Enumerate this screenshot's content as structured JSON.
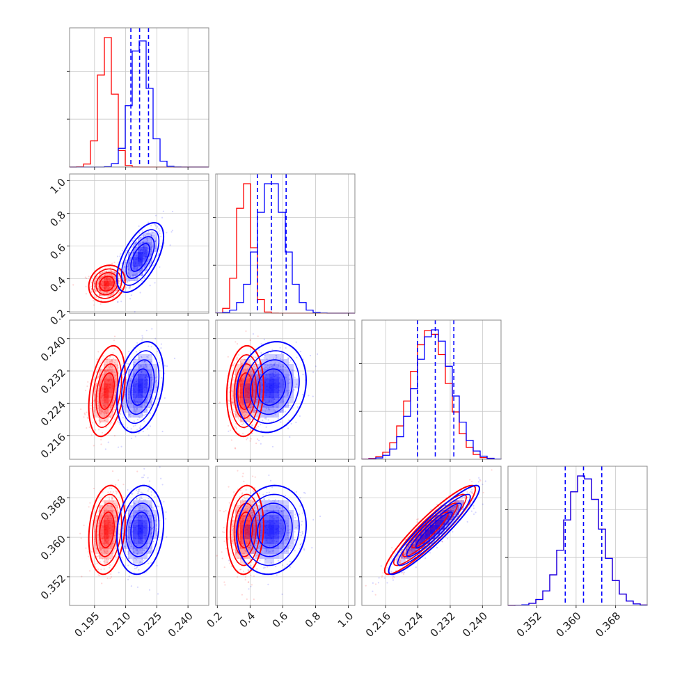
{
  "chart_data": {
    "type": "corner",
    "parameters": [
      {
        "id": "p1",
        "range": [
          0.183,
          0.25
        ],
        "ticks": [
          "0.195",
          "0.210",
          "0.225",
          "0.240"
        ]
      },
      {
        "id": "p2",
        "range": [
          0.19,
          1.04
        ],
        "ticks": [
          "0.2",
          "0.4",
          "0.6",
          "0.8",
          "1.0"
        ]
      },
      {
        "id": "p3",
        "range": [
          0.2101,
          0.2446
        ],
        "ticks": [
          "0.216",
          "0.224",
          "0.232",
          "0.240"
        ]
      },
      {
        "id": "p4",
        "range": [
          0.3462,
          0.3744
        ],
        "ticks": [
          "0.352",
          "0.360",
          "0.368"
        ]
      }
    ],
    "series": [
      {
        "color": "#ff0000",
        "mean": [
          0.201,
          0.37,
          0.227,
          0.3615
        ],
        "std": [
          0.0035,
          0.045,
          0.0045,
          0.0036
        ],
        "corr": [
          [
            1,
            0.15,
            0.35,
            0.2
          ],
          [
            0.15,
            1,
            0.1,
            0.1
          ],
          [
            0.35,
            0.1,
            1,
            0.92
          ],
          [
            0.2,
            0.1,
            0.92,
            1
          ]
        ],
        "quantiles": null
      },
      {
        "color": "#0000ff",
        "mean": [
          0.217,
          0.53,
          0.228,
          0.3615
        ],
        "std": [
          0.0045,
          0.085,
          0.0045,
          0.0036
        ],
        "corr": [
          [
            1,
            0.6,
            0.3,
            0.15
          ],
          [
            0.6,
            1,
            0.15,
            0.1
          ],
          [
            0.3,
            0.15,
            1,
            0.93
          ],
          [
            0.15,
            0.1,
            0.93,
            1
          ]
        ],
        "quantiles": [
          [
            0.2125,
            0.2167,
            0.221
          ],
          [
            0.445,
            0.53,
            0.62
          ],
          [
            0.2239,
            0.2283,
            0.2329
          ],
          [
            0.3578,
            0.3615,
            0.3652
          ]
        ]
      }
    ],
    "grid": true,
    "legend": "none"
  }
}
